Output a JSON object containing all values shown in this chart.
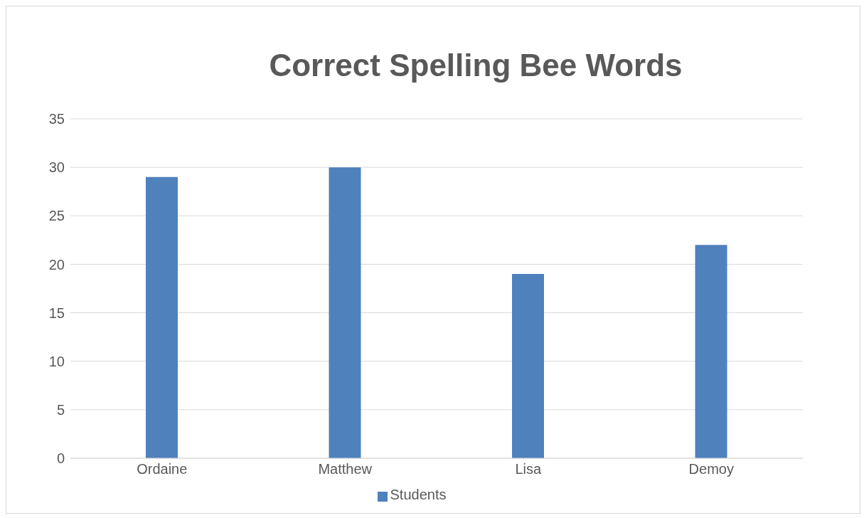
{
  "chart_data": {
    "type": "bar",
    "title": "Correct Spelling Bee Words",
    "categories": [
      "Ordaine",
      "Matthew",
      "Lisa",
      "Demoy"
    ],
    "series": [
      {
        "name": "Students",
        "color": "#4f81bd",
        "values": [
          29,
          30,
          19,
          22
        ]
      }
    ],
    "ylim": [
      0,
      35
    ],
    "yticks": [
      0,
      5,
      10,
      15,
      20,
      25,
      30,
      35
    ],
    "grid": "y",
    "legend": "bottom"
  }
}
